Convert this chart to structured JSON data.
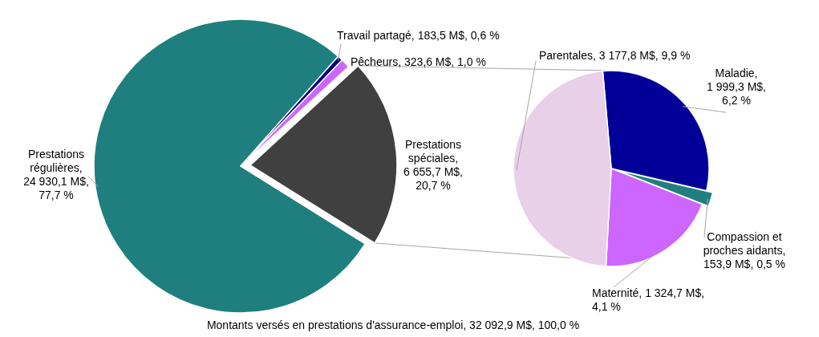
{
  "chart_data": [
    {
      "type": "pie",
      "categories": [
        "Prestations régulières, 24 930,1 M$, 77,7 %",
        "Travail partagé, 183,5 M$, 0,6 %",
        "Pêcheurs, 323,6 M$, 1,0 %",
        "Prestations spéciales, 6 655,7 M$, 20,7 %"
      ],
      "values": [
        24930.1,
        183.5,
        323.6,
        6655.7
      ],
      "colors": [
        "#1f7f7f",
        "#000080",
        "#cc66ff",
        "#404040"
      ],
      "annotations": [
        "Montants versés en prestations d'assurance-emploi, 32 092,9 M$, 100,0 %"
      ]
    },
    {
      "type": "pie",
      "categories": [
        "Maladie, 1 999,3 M$, 6,2 %",
        "Compassion et proches aidants, 153,9 M$, 0,5 %",
        "Maternité, 1 324,7 M$, 4,1 %",
        "Parentales, 3 177,8 M$, 9,9 %"
      ],
      "values": [
        1999.3,
        153.9,
        1324.7,
        3177.8
      ],
      "colors": [
        "#000099",
        "#1f7f7f",
        "#cc66ff",
        "#e8d0e8"
      ]
    }
  ]
}
